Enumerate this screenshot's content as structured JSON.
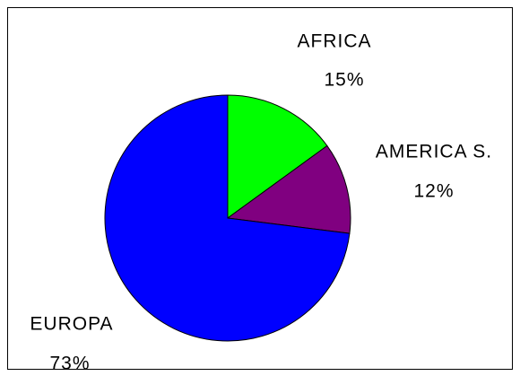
{
  "chart_data": {
    "type": "pie",
    "categories": [
      "AFRICA",
      "AMERICA S.",
      "EUROPA"
    ],
    "values": [
      15,
      12,
      73
    ],
    "value_labels": [
      "15%",
      "12%",
      "73%"
    ],
    "colors": [
      "#00ff00",
      "#800080",
      "#0000ff"
    ]
  }
}
